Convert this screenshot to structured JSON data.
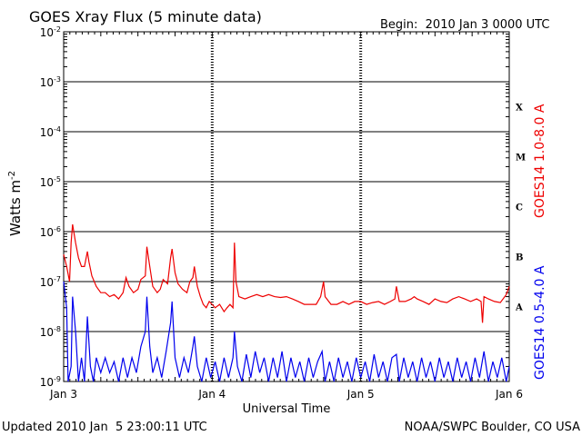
{
  "chart_data": {
    "type": "line",
    "title": "GOES Xray Flux (5 minute data)",
    "begin_label": "Begin:  2010 Jan 3 0000 UTC",
    "footer_left": "Updated 2010 Jan  5 23:00:11 UTC",
    "footer_right": "NOAA/SWPC Boulder, CO USA",
    "ylabel": {
      "base": "Watts m",
      "sup": "-2"
    },
    "xlabel": "Universal Time",
    "y_scale": "log",
    "ylim": [
      1e-09,
      0.01
    ],
    "y_ticks": [
      {
        "base": "10",
        "sup": "-9"
      },
      {
        "base": "10",
        "sup": "-8"
      },
      {
        "base": "10",
        "sup": "-7"
      },
      {
        "base": "10",
        "sup": "-6"
      },
      {
        "base": "10",
        "sup": "-5"
      },
      {
        "base": "10",
        "sup": "-4"
      },
      {
        "base": "10",
        "sup": "-3"
      },
      {
        "base": "10",
        "sup": "-2"
      }
    ],
    "x_unit": "days",
    "xlim": [
      0,
      3
    ],
    "x_ticks": [
      "Jan 3",
      "Jan 4",
      "Jan 5",
      "Jan 6"
    ],
    "flare_classes": [
      "A",
      "B",
      "C",
      "M",
      "X"
    ],
    "grid": true,
    "series": [
      {
        "name": "GOES14 1.0-8.0 A",
        "color": "#ee0000",
        "points": [
          [
            0.0,
            3.5e-07
          ],
          [
            0.02,
            2e-07
          ],
          [
            0.04,
            1e-07
          ],
          [
            0.05,
            6e-07
          ],
          [
            0.06,
            1.4e-06
          ],
          [
            0.08,
            6e-07
          ],
          [
            0.1,
            3e-07
          ],
          [
            0.12,
            2e-07
          ],
          [
            0.14,
            2e-07
          ],
          [
            0.16,
            4e-07
          ],
          [
            0.17,
            2.5e-07
          ],
          [
            0.19,
            1.3e-07
          ],
          [
            0.22,
            8e-08
          ],
          [
            0.25,
            6e-08
          ],
          [
            0.28,
            6e-08
          ],
          [
            0.31,
            5e-08
          ],
          [
            0.34,
            5.5e-08
          ],
          [
            0.37,
            4.5e-08
          ],
          [
            0.4,
            6e-08
          ],
          [
            0.42,
            1.2e-07
          ],
          [
            0.44,
            8e-08
          ],
          [
            0.47,
            6e-08
          ],
          [
            0.5,
            7e-08
          ],
          [
            0.52,
            1.1e-07
          ],
          [
            0.55,
            1.3e-07
          ],
          [
            0.56,
            5e-07
          ],
          [
            0.58,
            2e-07
          ],
          [
            0.6,
            8e-08
          ],
          [
            0.63,
            6e-08
          ],
          [
            0.65,
            7e-08
          ],
          [
            0.67,
            1.1e-07
          ],
          [
            0.7,
            9e-08
          ],
          [
            0.72,
            3e-07
          ],
          [
            0.73,
            4.5e-07
          ],
          [
            0.75,
            1.5e-07
          ],
          [
            0.77,
            9e-08
          ],
          [
            0.8,
            7e-08
          ],
          [
            0.83,
            6e-08
          ],
          [
            0.85,
            1e-07
          ],
          [
            0.87,
            1.2e-07
          ],
          [
            0.88,
            2e-07
          ],
          [
            0.9,
            8e-08
          ],
          [
            0.92,
            5e-08
          ],
          [
            0.94,
            3.5e-08
          ],
          [
            0.96,
            3e-08
          ],
          [
            0.98,
            4e-08
          ],
          [
            1.0,
            3.5e-08
          ],
          [
            1.02,
            3e-08
          ],
          [
            1.05,
            3.5e-08
          ],
          [
            1.08,
            2.5e-08
          ],
          [
            1.1,
            3e-08
          ],
          [
            1.12,
            3.5e-08
          ],
          [
            1.14,
            3e-08
          ],
          [
            1.15,
            6e-07
          ],
          [
            1.16,
            1e-07
          ],
          [
            1.18,
            5e-08
          ],
          [
            1.22,
            4.5e-08
          ],
          [
            1.26,
            5e-08
          ],
          [
            1.3,
            5.5e-08
          ],
          [
            1.34,
            5e-08
          ],
          [
            1.38,
            5.5e-08
          ],
          [
            1.42,
            5e-08
          ],
          [
            1.46,
            4.8e-08
          ],
          [
            1.5,
            5e-08
          ],
          [
            1.54,
            4.5e-08
          ],
          [
            1.58,
            4e-08
          ],
          [
            1.62,
            3.5e-08
          ],
          [
            1.66,
            3.5e-08
          ],
          [
            1.7,
            3.5e-08
          ],
          [
            1.73,
            5e-08
          ],
          [
            1.75,
            1e-07
          ],
          [
            1.76,
            5e-08
          ],
          [
            1.8,
            3.5e-08
          ],
          [
            1.84,
            3.5e-08
          ],
          [
            1.88,
            4e-08
          ],
          [
            1.92,
            3.5e-08
          ],
          [
            1.96,
            4e-08
          ],
          [
            2.0,
            4e-08
          ],
          [
            2.04,
            3.5e-08
          ],
          [
            2.08,
            3.8e-08
          ],
          [
            2.12,
            4e-08
          ],
          [
            2.16,
            3.5e-08
          ],
          [
            2.2,
            4e-08
          ],
          [
            2.23,
            4.5e-08
          ],
          [
            2.24,
            8e-08
          ],
          [
            2.26,
            4e-08
          ],
          [
            2.3,
            4e-08
          ],
          [
            2.34,
            4.5e-08
          ],
          [
            2.36,
            5e-08
          ],
          [
            2.38,
            4.5e-08
          ],
          [
            2.42,
            4e-08
          ],
          [
            2.46,
            3.5e-08
          ],
          [
            2.5,
            4.5e-08
          ],
          [
            2.54,
            4e-08
          ],
          [
            2.58,
            3.8e-08
          ],
          [
            2.62,
            4.5e-08
          ],
          [
            2.66,
            5e-08
          ],
          [
            2.7,
            4.5e-08
          ],
          [
            2.74,
            4e-08
          ],
          [
            2.78,
            4.5e-08
          ],
          [
            2.81,
            4e-08
          ],
          [
            2.82,
            1.5e-08
          ],
          [
            2.83,
            5e-08
          ],
          [
            2.86,
            4.5e-08
          ],
          [
            2.9,
            4e-08
          ],
          [
            2.94,
            3.8e-08
          ],
          [
            2.98,
            5.5e-08
          ],
          [
            3.0,
            8e-08
          ]
        ]
      },
      {
        "name": "GOES14 0.5-4.0 A",
        "color": "#0000ee",
        "points": [
          [
            0.0,
            1e-07
          ],
          [
            0.02,
            3e-08
          ],
          [
            0.03,
            1e-09
          ],
          [
            0.05,
            2e-09
          ],
          [
            0.06,
            5e-08
          ],
          [
            0.08,
            1e-08
          ],
          [
            0.1,
            1e-09
          ],
          [
            0.12,
            3e-09
          ],
          [
            0.14,
            1e-09
          ],
          [
            0.16,
            2e-08
          ],
          [
            0.18,
            2e-09
          ],
          [
            0.2,
            1e-09
          ],
          [
            0.22,
            3e-09
          ],
          [
            0.25,
            1.5e-09
          ],
          [
            0.28,
            3e-09
          ],
          [
            0.31,
            1.5e-09
          ],
          [
            0.34,
            2.5e-09
          ],
          [
            0.37,
            1e-09
          ],
          [
            0.4,
            3e-09
          ],
          [
            0.43,
            1.2e-09
          ],
          [
            0.46,
            3e-09
          ],
          [
            0.49,
            1.5e-09
          ],
          [
            0.52,
            5e-09
          ],
          [
            0.55,
            1e-08
          ],
          [
            0.56,
            5e-08
          ],
          [
            0.58,
            5e-09
          ],
          [
            0.6,
            1.5e-09
          ],
          [
            0.63,
            3e-09
          ],
          [
            0.66,
            1.2e-09
          ],
          [
            0.69,
            4e-09
          ],
          [
            0.72,
            1.5e-08
          ],
          [
            0.73,
            4e-08
          ],
          [
            0.75,
            3e-09
          ],
          [
            0.78,
            1.2e-09
          ],
          [
            0.81,
            3e-09
          ],
          [
            0.84,
            1.5e-09
          ],
          [
            0.87,
            5e-09
          ],
          [
            0.88,
            8e-09
          ],
          [
            0.9,
            2e-09
          ],
          [
            0.93,
            1e-09
          ],
          [
            0.96,
            3e-09
          ],
          [
            0.99,
            1.2e-09
          ],
          [
            1.02,
            2.5e-09
          ],
          [
            1.05,
            1e-09
          ],
          [
            1.08,
            3e-09
          ],
          [
            1.11,
            1.2e-09
          ],
          [
            1.14,
            3e-09
          ],
          [
            1.15,
            1e-08
          ],
          [
            1.17,
            2e-09
          ],
          [
            1.2,
            1e-09
          ],
          [
            1.23,
            3.5e-09
          ],
          [
            1.26,
            1.2e-09
          ],
          [
            1.29,
            4e-09
          ],
          [
            1.32,
            1.5e-09
          ],
          [
            1.35,
            3e-09
          ],
          [
            1.38,
            1e-09
          ],
          [
            1.41,
            3e-09
          ],
          [
            1.44,
            1.2e-09
          ],
          [
            1.47,
            4e-09
          ],
          [
            1.5,
            1e-09
          ],
          [
            1.53,
            3e-09
          ],
          [
            1.56,
            1.2e-09
          ],
          [
            1.59,
            2.5e-09
          ],
          [
            1.62,
            1e-09
          ],
          [
            1.65,
            3e-09
          ],
          [
            1.68,
            1.2e-09
          ],
          [
            1.71,
            2.5e-09
          ],
          [
            1.74,
            4e-09
          ],
          [
            1.76,
            1e-09
          ],
          [
            1.79,
            2.5e-09
          ],
          [
            1.82,
            1e-09
          ],
          [
            1.85,
            3e-09
          ],
          [
            1.88,
            1.2e-09
          ],
          [
            1.91,
            2.5e-09
          ],
          [
            1.94,
            1e-09
          ],
          [
            1.97,
            3e-09
          ],
          [
            2.0,
            1.2e-09
          ],
          [
            2.03,
            2.5e-09
          ],
          [
            2.06,
            1e-09
          ],
          [
            2.09,
            3.5e-09
          ],
          [
            2.12,
            1.2e-09
          ],
          [
            2.15,
            2.5e-09
          ],
          [
            2.18,
            1e-09
          ],
          [
            2.21,
            3e-09
          ],
          [
            2.24,
            3.5e-09
          ],
          [
            2.26,
            1e-09
          ],
          [
            2.29,
            3e-09
          ],
          [
            2.32,
            1.2e-09
          ],
          [
            2.35,
            2.5e-09
          ],
          [
            2.38,
            1e-09
          ],
          [
            2.41,
            3e-09
          ],
          [
            2.44,
            1.2e-09
          ],
          [
            2.47,
            2.5e-09
          ],
          [
            2.5,
            1e-09
          ],
          [
            2.53,
            3e-09
          ],
          [
            2.56,
            1.2e-09
          ],
          [
            2.59,
            2.5e-09
          ],
          [
            2.62,
            1e-09
          ],
          [
            2.65,
            3e-09
          ],
          [
            2.68,
            1.2e-09
          ],
          [
            2.71,
            2.5e-09
          ],
          [
            2.74,
            1e-09
          ],
          [
            2.77,
            3e-09
          ],
          [
            2.8,
            1.2e-09
          ],
          [
            2.83,
            4e-09
          ],
          [
            2.86,
            1e-09
          ],
          [
            2.89,
            2.5e-09
          ],
          [
            2.92,
            1.2e-09
          ],
          [
            2.95,
            3e-09
          ],
          [
            2.98,
            1e-09
          ],
          [
            3.0,
            2e-09
          ]
        ]
      }
    ]
  }
}
